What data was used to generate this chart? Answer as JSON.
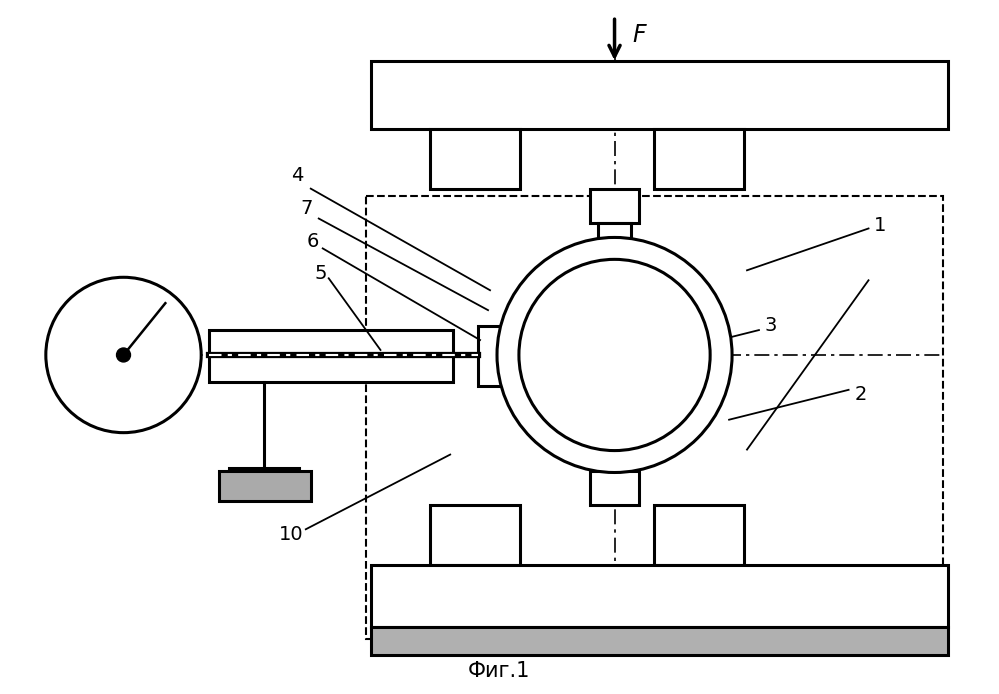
{
  "title": "Фиг.1",
  "bg_color": "#ffffff",
  "line_color": "#000000",
  "gray_color": "#aaaaaa",
  "fig_width": 9.99,
  "fig_height": 6.94
}
